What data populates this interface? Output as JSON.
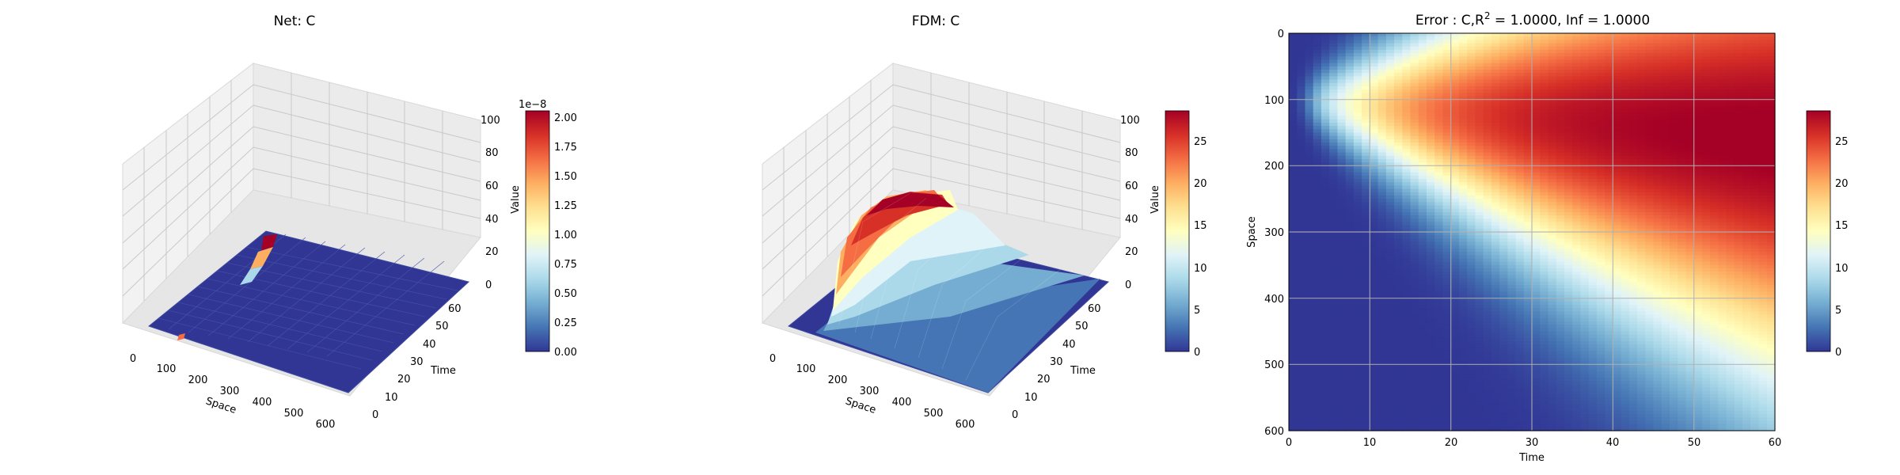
{
  "colors": {
    "colormap": [
      "#313695",
      "#4575b4",
      "#74add1",
      "#abd9e9",
      "#e0f3f8",
      "#ffffbf",
      "#fee090",
      "#fdae61",
      "#f46d43",
      "#d73027",
      "#a50026"
    ],
    "pane": "#f2f2f2",
    "grid": "#b0b0b0"
  },
  "chart_data": [
    {
      "type": "surface3d",
      "title": "Net: C",
      "xlabel": "Space",
      "ylabel": "Time",
      "zlabel": "Value",
      "xticks": [
        "0",
        "100",
        "200",
        "300",
        "400",
        "500",
        "600"
      ],
      "yticks": [
        "0",
        "10",
        "20",
        "30",
        "40",
        "50",
        "60"
      ],
      "zticks": [
        "0",
        "20",
        "40",
        "60",
        "80",
        "100"
      ],
      "xlim": [
        0,
        600
      ],
      "ylim": [
        0,
        60
      ],
      "zlim": [
        0,
        100
      ],
      "surface": "near-zero values with a small peak near space 0 at early time",
      "colorbar": {
        "offset_label": "1e−8",
        "ticks": [
          "0.00",
          "0.25",
          "0.50",
          "0.75",
          "1.00",
          "1.25",
          "1.50",
          "1.75",
          "2.00"
        ],
        "range": [
          0,
          2.05
        ]
      }
    },
    {
      "type": "surface3d",
      "title": "FDM: C",
      "xlabel": "Space",
      "ylabel": "Time",
      "zlabel": "Value",
      "xticks": [
        "0",
        "100",
        "200",
        "300",
        "400",
        "500",
        "600"
      ],
      "yticks": [
        "0",
        "10",
        "20",
        "30",
        "40",
        "50",
        "60"
      ],
      "zticks": [
        "0",
        "20",
        "40",
        "60",
        "80",
        "100"
      ],
      "xlim": [
        0,
        600
      ],
      "ylim": [
        0,
        60
      ],
      "zlim": [
        0,
        100
      ],
      "surface": "concentration spreading from space≈100, peak ≈28 at late time",
      "colorbar": {
        "ticks": [
          "0",
          "5",
          "10",
          "15",
          "20",
          "25"
        ],
        "range": [
          0,
          28.5
        ]
      }
    },
    {
      "type": "heatmap",
      "title_parts": {
        "prefix": "Error : C,R",
        "sup": "2",
        "suffix": " = 1.0000, Inf = 1.0000"
      },
      "xlabel": "Time",
      "ylabel": "Space",
      "xticks": [
        "0",
        "10",
        "20",
        "30",
        "40",
        "50",
        "60"
      ],
      "yticks": [
        "0",
        "100",
        "200",
        "300",
        "400",
        "500",
        "600"
      ],
      "xlim": [
        0,
        60
      ],
      "ylim": [
        600,
        0
      ],
      "grid": true,
      "colorbar": {
        "ticks": [
          "0",
          "5",
          "10",
          "15",
          "20",
          "25"
        ],
        "range": [
          0,
          28.5
        ]
      }
    }
  ]
}
